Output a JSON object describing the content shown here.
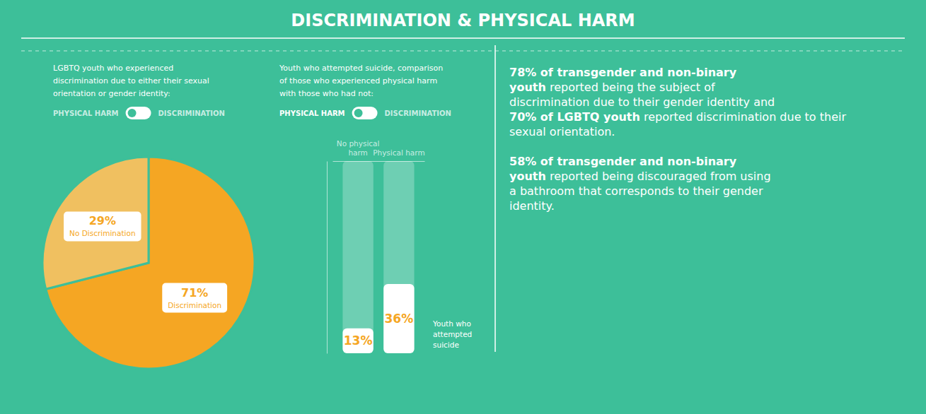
{
  "chart_data": [
    {
      "type": "pie",
      "title": "DISCRIMINATION & PHYSICAL HARM",
      "subtitle": "LGBTQ youth who experienced\ndiscrimination due to either their sexual\norientation or gender identity:",
      "categories": [
        "Discrimination",
        "No Discrimination"
      ],
      "values": [
        71,
        29
      ],
      "value_labels": [
        "71%",
        "29%"
      ],
      "colors": [
        "#f5a623",
        "#f0c060"
      ],
      "data_labels": true,
      "annotations": [
        "PHYSICAL HARM",
        "DISCRIMINATION",
        "78% of transgender and non-binary",
        "youth",
        " reported being the subject of",
        "discrimination due to their gender identity and",
        "70% of LGBTQ youth",
        " reported discrimination due to their",
        "sexual orientation.",
        "58% of transgender and non-binary",
        "youth",
        " reported being discouraged from using",
        "a bathroom that corresponds to their gender",
        "identity."
      ]
    },
    {
      "type": "bar",
      "subtitle": "Youth who attempted suicide, comparison\nof those who experienced physical harm\nwith those who had not:",
      "categories": [
        "No physical\nharm",
        "Physical harm"
      ],
      "values": [
        13,
        36
      ],
      "value_labels": [
        "13%",
        "36%"
      ],
      "color": "#ffffff",
      "ylabel": "Youth who\nattempted\nsuicide",
      "ylim": [
        0,
        100
      ],
      "tick_labels": "x",
      "data_labels": true,
      "annotations": [
        "PHYSICAL HARM",
        "DISCRIMINATION"
      ]
    }
  ]
}
